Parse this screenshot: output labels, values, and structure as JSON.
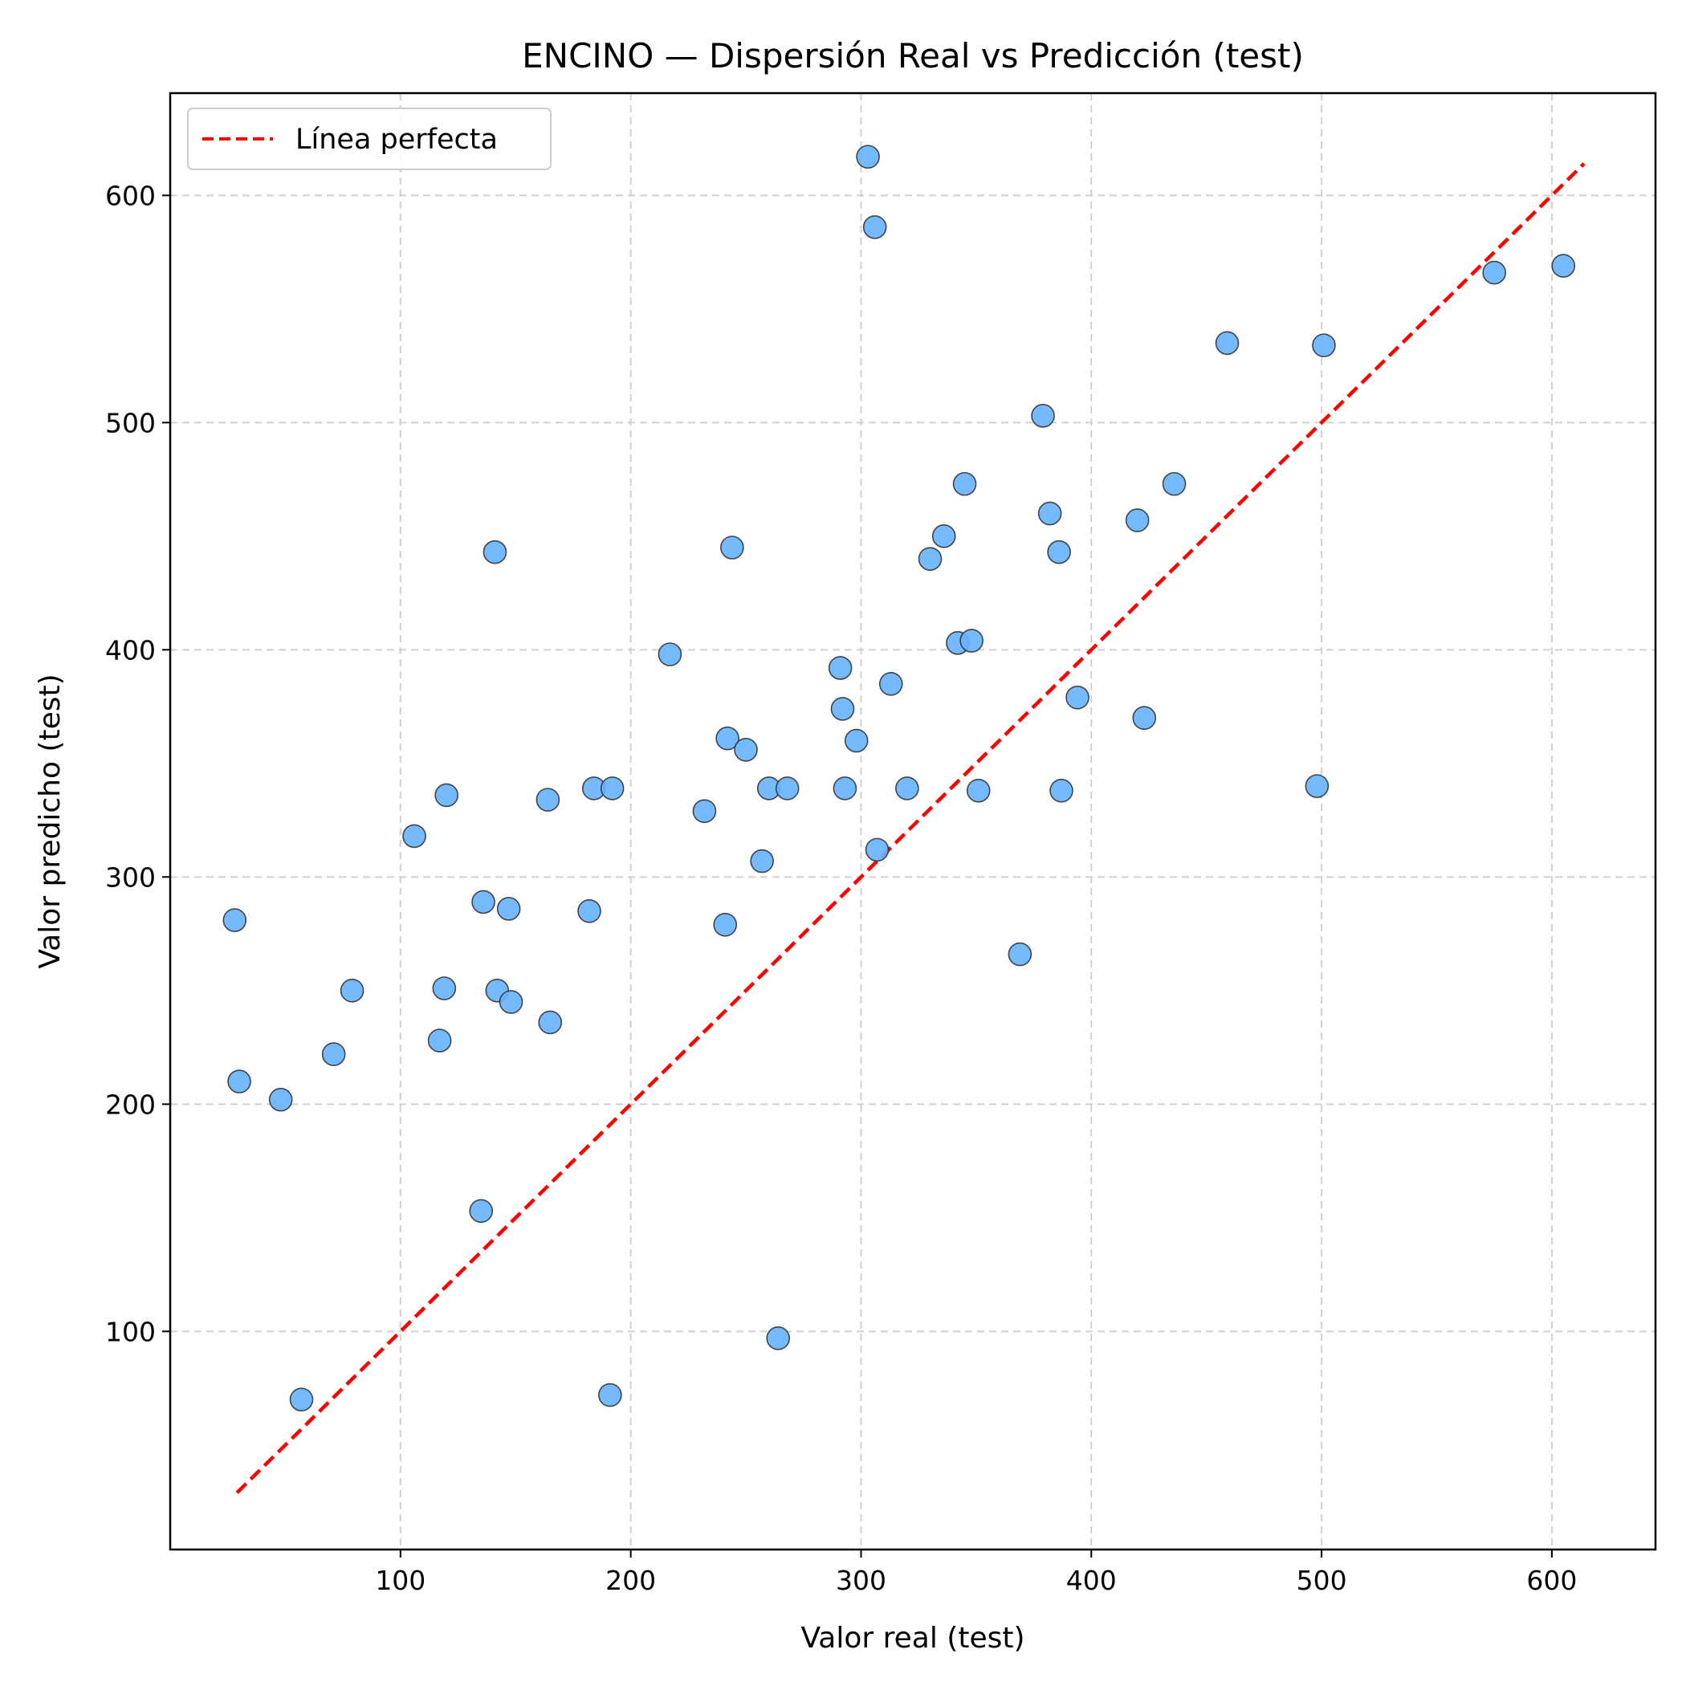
{
  "chart_data": {
    "type": "scatter",
    "title": "ENCINO — Dispersión Real vs Predicción (test)",
    "xlabel": "Valor real (test)",
    "ylabel": "Valor predicho (test)",
    "xlim": [
      0,
      645
    ],
    "ylim": [
      4,
      645
    ],
    "xticks": [
      100,
      200,
      300,
      400,
      500,
      600
    ],
    "yticks": [
      100,
      200,
      300,
      400,
      500,
      600
    ],
    "grid": true,
    "legend": {
      "position": "top-left",
      "entries": [
        "Línea perfecta"
      ]
    },
    "colors": {
      "points": "#66b2ff",
      "point_edge": "#333333",
      "line": "#ff0000"
    },
    "reference_line": {
      "name": "Línea perfecta",
      "style": "dashed",
      "x": [
        29,
        614
      ],
      "y": [
        29,
        614
      ]
    },
    "points": [
      {
        "x": 28,
        "y": 281
      },
      {
        "x": 30,
        "y": 210
      },
      {
        "x": 48,
        "y": 202
      },
      {
        "x": 57,
        "y": 70
      },
      {
        "x": 71,
        "y": 222
      },
      {
        "x": 79,
        "y": 250
      },
      {
        "x": 106,
        "y": 318
      },
      {
        "x": 117,
        "y": 228
      },
      {
        "x": 119,
        "y": 251
      },
      {
        "x": 120,
        "y": 336
      },
      {
        "x": 135,
        "y": 153
      },
      {
        "x": 136,
        "y": 289
      },
      {
        "x": 141,
        "y": 443
      },
      {
        "x": 142,
        "y": 250
      },
      {
        "x": 147,
        "y": 286
      },
      {
        "x": 148,
        "y": 245
      },
      {
        "x": 164,
        "y": 334
      },
      {
        "x": 165,
        "y": 236
      },
      {
        "x": 182,
        "y": 285
      },
      {
        "x": 184,
        "y": 339
      },
      {
        "x": 191,
        "y": 72
      },
      {
        "x": 192,
        "y": 339
      },
      {
        "x": 217,
        "y": 398
      },
      {
        "x": 232,
        "y": 329
      },
      {
        "x": 241,
        "y": 279
      },
      {
        "x": 242,
        "y": 361
      },
      {
        "x": 244,
        "y": 445
      },
      {
        "x": 250,
        "y": 356
      },
      {
        "x": 257,
        "y": 307
      },
      {
        "x": 260,
        "y": 339
      },
      {
        "x": 264,
        "y": 97
      },
      {
        "x": 268,
        "y": 339
      },
      {
        "x": 291,
        "y": 392
      },
      {
        "x": 292,
        "y": 374
      },
      {
        "x": 293,
        "y": 339
      },
      {
        "x": 298,
        "y": 360
      },
      {
        "x": 303,
        "y": 617
      },
      {
        "x": 306,
        "y": 586
      },
      {
        "x": 307,
        "y": 312
      },
      {
        "x": 313,
        "y": 385
      },
      {
        "x": 320,
        "y": 339
      },
      {
        "x": 330,
        "y": 440
      },
      {
        "x": 336,
        "y": 450
      },
      {
        "x": 342,
        "y": 403
      },
      {
        "x": 345,
        "y": 473
      },
      {
        "x": 348,
        "y": 404
      },
      {
        "x": 351,
        "y": 338
      },
      {
        "x": 369,
        "y": 266
      },
      {
        "x": 379,
        "y": 503
      },
      {
        "x": 382,
        "y": 460
      },
      {
        "x": 386,
        "y": 443
      },
      {
        "x": 387,
        "y": 338
      },
      {
        "x": 394,
        "y": 379
      },
      {
        "x": 420,
        "y": 457
      },
      {
        "x": 423,
        "y": 370
      },
      {
        "x": 436,
        "y": 473
      },
      {
        "x": 459,
        "y": 535
      },
      {
        "x": 498,
        "y": 340
      },
      {
        "x": 501,
        "y": 534
      },
      {
        "x": 575,
        "y": 566
      },
      {
        "x": 605,
        "y": 569
      }
    ]
  }
}
